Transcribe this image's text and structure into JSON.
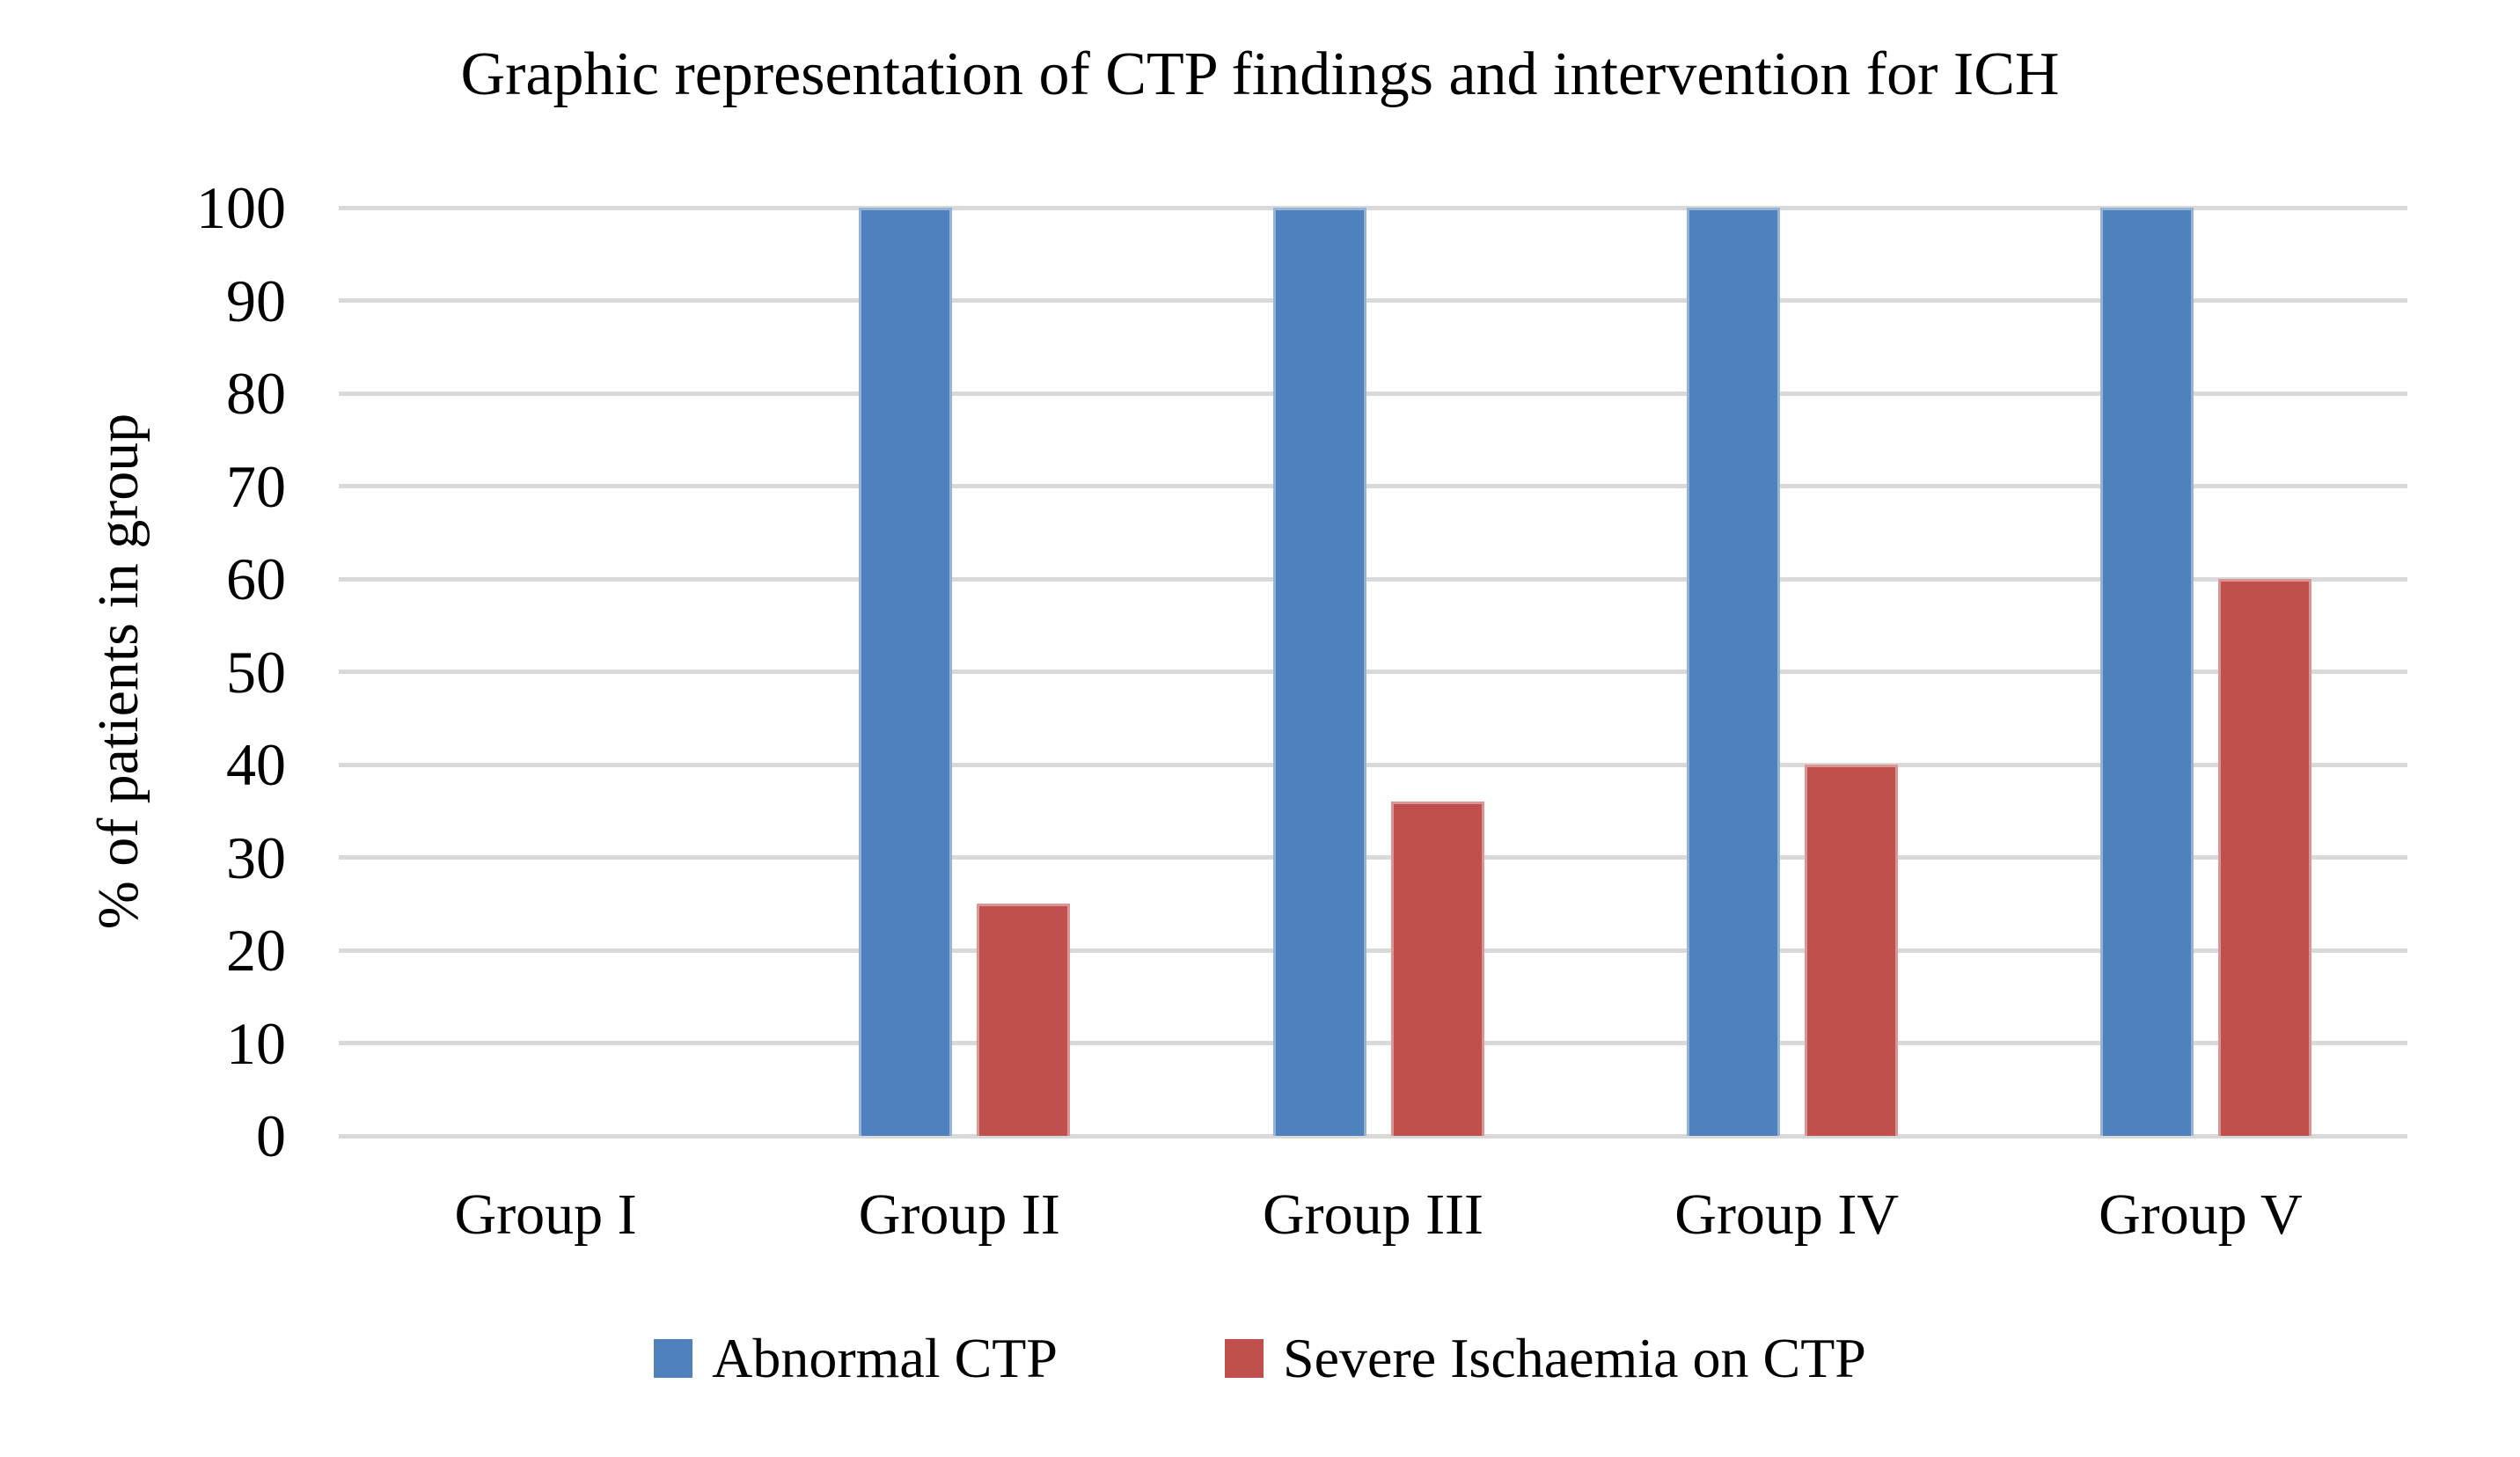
{
  "chart_data": {
    "type": "bar",
    "title": "Graphic representation of CTP findings and intervention for ICH",
    "categories": [
      "Group I",
      "Group II",
      "Group III",
      "Group IV",
      "Group V"
    ],
    "series": [
      {
        "name": "Abnormal CTP",
        "color": "#4F81BD",
        "border_color": "#95B3D7",
        "values": [
          0,
          100,
          100,
          100,
          100
        ]
      },
      {
        "name": "Severe Ischaemia on CTP",
        "color": "#C0504D",
        "border_color": "#D99694",
        "values": [
          0,
          25,
          36,
          40,
          60
        ]
      }
    ],
    "xlabel": "",
    "ylabel": "% of patients in group",
    "ylim": [
      0,
      100
    ],
    "ytick_step": 10,
    "ytick_labels": [
      "0",
      "10",
      "20",
      "30",
      "40",
      "50",
      "60",
      "70",
      "80",
      "90",
      "100"
    ],
    "grid": true,
    "gridline_color": "#D9D9D9",
    "legend_position": "bottom",
    "background_color": "#FFFFFF",
    "text_color": "#000000"
  }
}
